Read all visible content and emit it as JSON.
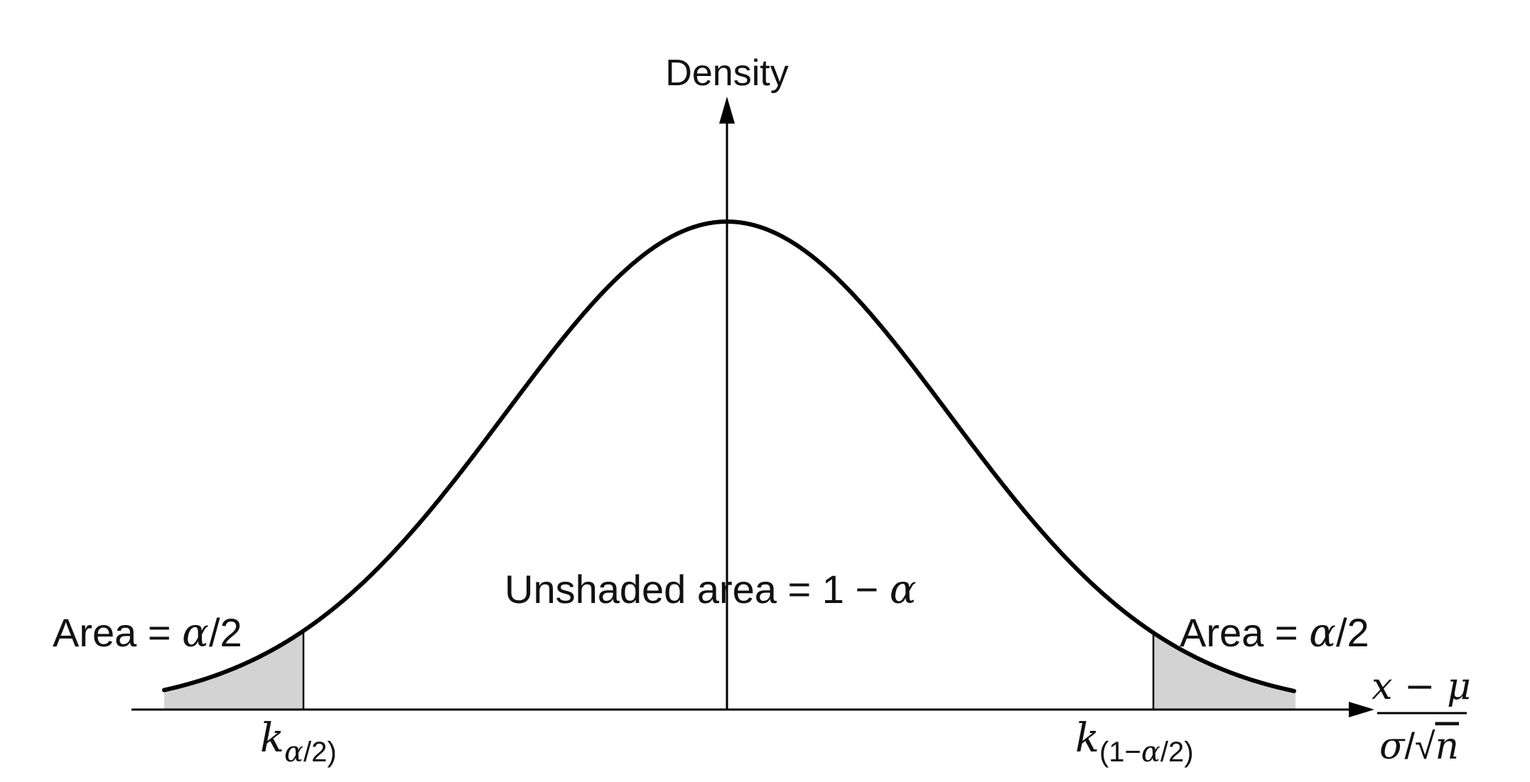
{
  "figure": {
    "y_axis_label": "Density",
    "center_label": {
      "text": "Unshaded area = 1 − ",
      "symbol": "α"
    },
    "left_tail_label": {
      "text": "Area = ",
      "symbol": "α",
      "suffix": "/2"
    },
    "right_tail_label": {
      "text": "Area = ",
      "symbol": "α",
      "suffix": "/2"
    },
    "left_critical": {
      "base": "k",
      "sub_symbol": "α",
      "sub_suffix": "/2)"
    },
    "right_critical": {
      "base": "k",
      "sub_prefix": "(1−",
      "sub_symbol": "α",
      "sub_suffix": "/2)"
    },
    "x_axis_label": {
      "numerator": "x − μ",
      "den_sigma": "σ",
      "den_slash": "/",
      "den_sqrt": "√",
      "den_n": "n"
    }
  },
  "colors": {
    "curve": "#000000",
    "axis": "#000000",
    "tail_fill": "#d3d3d3",
    "background": "#ffffff"
  },
  "chart_data": {
    "type": "area",
    "distribution": "standard normal density",
    "shaded_regions": [
      "left tail",
      "right tail"
    ],
    "left_tail_area": "α/2",
    "right_tail_area": "α/2",
    "unshaded_area": "1 − α"
  }
}
